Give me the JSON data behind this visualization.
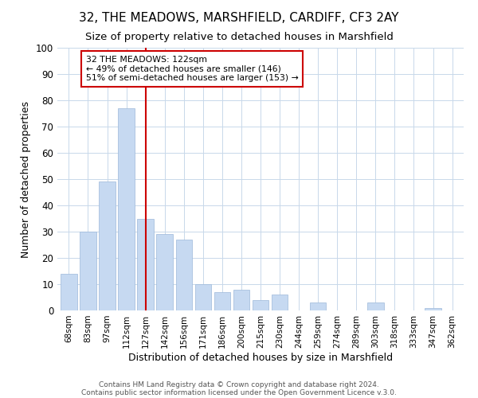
{
  "title": "32, THE MEADOWS, MARSHFIELD, CARDIFF, CF3 2AY",
  "subtitle": "Size of property relative to detached houses in Marshfield",
  "xlabel": "Distribution of detached houses by size in Marshfield",
  "ylabel": "Number of detached properties",
  "categories": [
    "68sqm",
    "83sqm",
    "97sqm",
    "112sqm",
    "127sqm",
    "142sqm",
    "156sqm",
    "171sqm",
    "186sqm",
    "200sqm",
    "215sqm",
    "230sqm",
    "244sqm",
    "259sqm",
    "274sqm",
    "289sqm",
    "303sqm",
    "318sqm",
    "333sqm",
    "347sqm",
    "362sqm"
  ],
  "values": [
    14,
    30,
    49,
    77,
    35,
    29,
    27,
    10,
    7,
    8,
    4,
    6,
    0,
    3,
    0,
    0,
    3,
    0,
    0,
    1,
    0
  ],
  "bar_color": "#c6d9f1",
  "bar_edge_color": "#9db8d9",
  "vline_x_idx": 4,
  "vline_color": "#cc0000",
  "ylim": [
    0,
    100
  ],
  "annotation_text": "32 THE MEADOWS: 122sqm\n← 49% of detached houses are smaller (146)\n51% of semi-detached houses are larger (153) →",
  "annotation_box_color": "#ffffff",
  "annotation_box_edge": "#cc0000",
  "footer1": "Contains HM Land Registry data © Crown copyright and database right 2024.",
  "footer2": "Contains public sector information licensed under the Open Government Licence v.3.0.",
  "title_fontsize": 11,
  "subtitle_fontsize": 9.5,
  "tick_fontsize": 7.5,
  "ylabel_fontsize": 9,
  "xlabel_fontsize": 9,
  "footer_fontsize": 6.5
}
